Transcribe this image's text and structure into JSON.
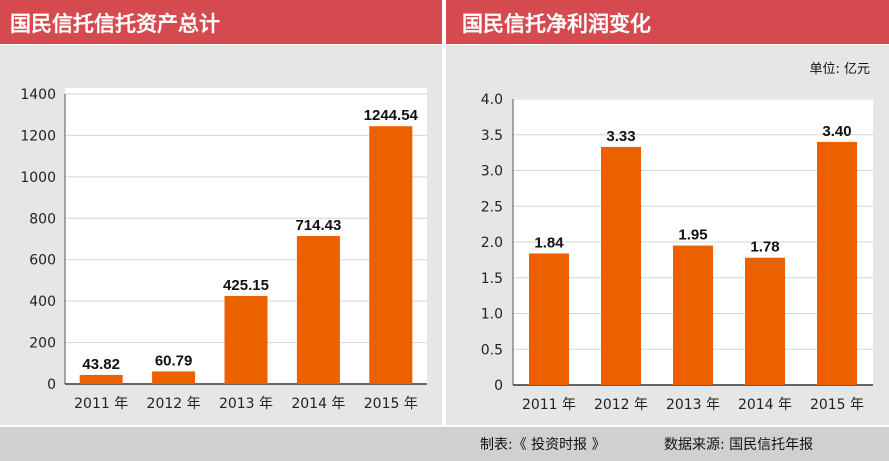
{
  "colors": {
    "title_bar": "#d44a4f",
    "panel_bg": "#e6e6e6",
    "plot_bg": "#ffffff",
    "grid": "#d6d6d6",
    "bar": "#eb6100",
    "footer_bg": "#d0d0d0"
  },
  "unit_label": "单位: 亿元",
  "footer": {
    "maker": "制表:《 投资时报 》",
    "source": "数据来源: 国民信托年报"
  },
  "chart_data": [
    {
      "type": "bar",
      "title": "国民信托信托资产总计",
      "categories": [
        "2011 年",
        "2012 年",
        "2013 年",
        "2014 年",
        "2015 年"
      ],
      "values": [
        43.82,
        60.79,
        425.15,
        714.43,
        1244.54
      ],
      "value_labels": [
        "43.82",
        "60.79",
        "425.15",
        "714.43",
        "1244.54"
      ],
      "ylim": [
        0,
        1400
      ],
      "yticks": [
        0,
        200,
        400,
        600,
        800,
        1000,
        1200,
        1400
      ],
      "ytick_labels": [
        "0",
        "200",
        "400",
        "600",
        "800",
        "1000",
        "1200",
        "1400"
      ],
      "xlabel": "",
      "ylabel": "",
      "grid": true
    },
    {
      "type": "bar",
      "title": "国民信托净利润变化",
      "categories": [
        "2011 年",
        "2012 年",
        "2013 年",
        "2014 年",
        "2015 年"
      ],
      "values": [
        1.84,
        3.33,
        1.95,
        1.78,
        3.4
      ],
      "value_labels": [
        "1.84",
        "3.33",
        "1.95",
        "1.78",
        "3.40"
      ],
      "ylim": [
        0,
        4.0
      ],
      "yticks": [
        0,
        0.5,
        1.0,
        1.5,
        2.0,
        2.5,
        3.0,
        3.5,
        4.0
      ],
      "ytick_labels": [
        "0",
        "0.5",
        "1.0",
        "1.5",
        "2.0",
        "2.5",
        "3.0",
        "3.5",
        "4.0"
      ],
      "xlabel": "",
      "ylabel": "",
      "grid": true
    }
  ]
}
